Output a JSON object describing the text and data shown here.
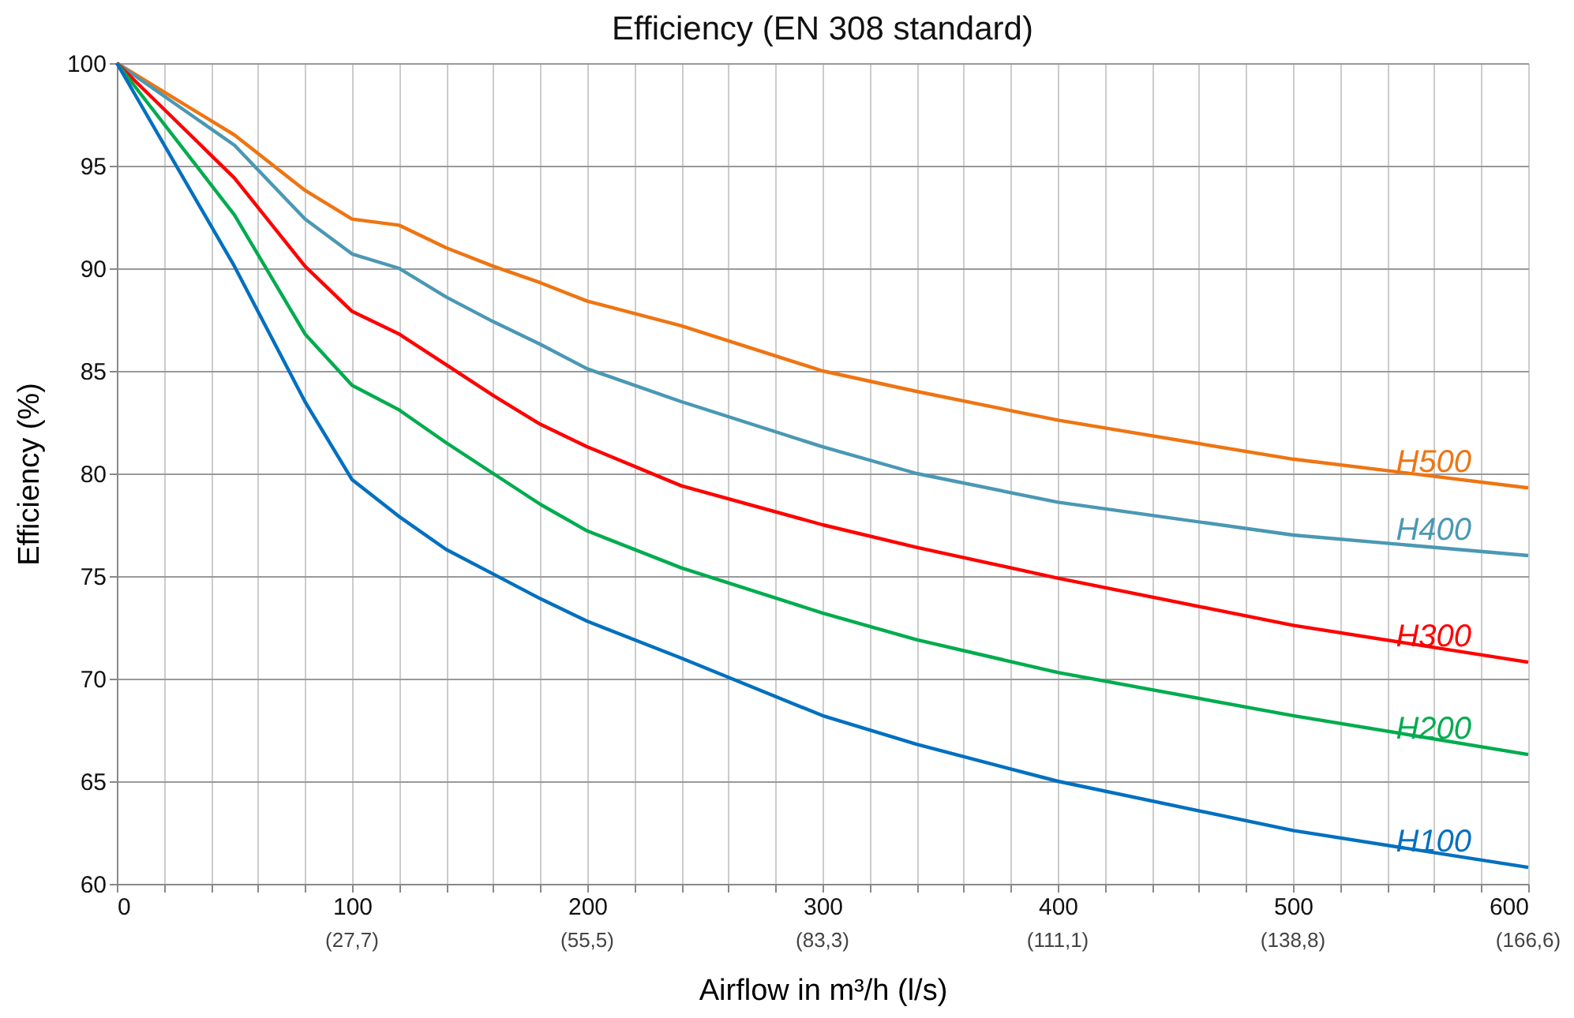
{
  "chart_data": {
    "type": "line",
    "title": "Efficiency (EN 308 standard)",
    "xlabel": "Airflow in m³/h (l/s)",
    "ylabel": "Efficiency (%)",
    "x": [
      0,
      50,
      80,
      100,
      120,
      140,
      160,
      180,
      200,
      240,
      300,
      340,
      400,
      500,
      600
    ],
    "series": [
      {
        "name": "H500",
        "color": "#ee7512",
        "values": [
          100,
          96.5,
          93.8,
          92.4,
          92.1,
          91.0,
          90.1,
          89.3,
          88.4,
          87.2,
          85.0,
          84.0,
          82.6,
          80.7,
          79.3
        ]
      },
      {
        "name": "H400",
        "color": "#4a98b4",
        "values": [
          100,
          96.0,
          92.4,
          90.7,
          90.0,
          88.6,
          87.4,
          86.3,
          85.1,
          83.5,
          81.3,
          80.0,
          78.6,
          77.0,
          76.0
        ]
      },
      {
        "name": "H300",
        "color": "#ff0000",
        "values": [
          100,
          94.4,
          90.1,
          87.9,
          86.8,
          85.3,
          83.8,
          82.4,
          81.3,
          79.4,
          77.5,
          76.4,
          74.9,
          72.6,
          70.8
        ]
      },
      {
        "name": "H200",
        "color": "#00ac4e",
        "values": [
          100,
          92.6,
          86.8,
          84.3,
          83.1,
          81.5,
          80.0,
          78.5,
          77.2,
          75.4,
          73.2,
          71.9,
          70.3,
          68.2,
          66.3
        ]
      },
      {
        "name": "H100",
        "color": "#0070c0",
        "values": [
          100,
          90.1,
          83.5,
          79.7,
          77.9,
          76.3,
          75.1,
          73.9,
          72.8,
          71.0,
          68.2,
          66.8,
          65.0,
          62.6,
          60.8
        ]
      }
    ],
    "annotations": [
      "(27,7)",
      "(55,5)",
      "(83,3)",
      "(111,1)",
      "(138,8)",
      "(166,6)"
    ],
    "xlim": [
      0,
      600
    ],
    "xticks": [
      0,
      {
        "value": 20,
        "label": null
      },
      {
        "value": 40,
        "label": null
      },
      {
        "value": 60,
        "label": null
      },
      {
        "value": 80,
        "label": null
      },
      100,
      {
        "value": 120,
        "label": null
      },
      {
        "value": 140,
        "label": null
      },
      {
        "value": 160,
        "label": null
      },
      {
        "value": 180,
        "label": null
      },
      200,
      {
        "value": 220,
        "label": null
      },
      {
        "value": 240,
        "label": null
      },
      {
        "value": 260,
        "label": null
      },
      {
        "value": 280,
        "label": null
      },
      300,
      {
        "value": 320,
        "label": null
      },
      {
        "value": 340,
        "label": null
      },
      {
        "value": 360,
        "label": null
      },
      {
        "value": 380,
        "label": null
      },
      400,
      {
        "value": 420,
        "label": null
      },
      {
        "value": 440,
        "label": null
      },
      {
        "value": 460,
        "label": null
      },
      {
        "value": 480,
        "label": null
      },
      500,
      {
        "value": 520,
        "label": null
      },
      {
        "value": 540,
        "label": null
      },
      {
        "value": 560,
        "label": null
      },
      {
        "value": 580,
        "label": null
      },
      600
    ],
    "ylim": [
      60,
      100
    ],
    "yticks": [
      60,
      65,
      70,
      75,
      80,
      85,
      90,
      95,
      100
    ],
    "grid": true,
    "marker": "none",
    "line_style": "solid"
  }
}
